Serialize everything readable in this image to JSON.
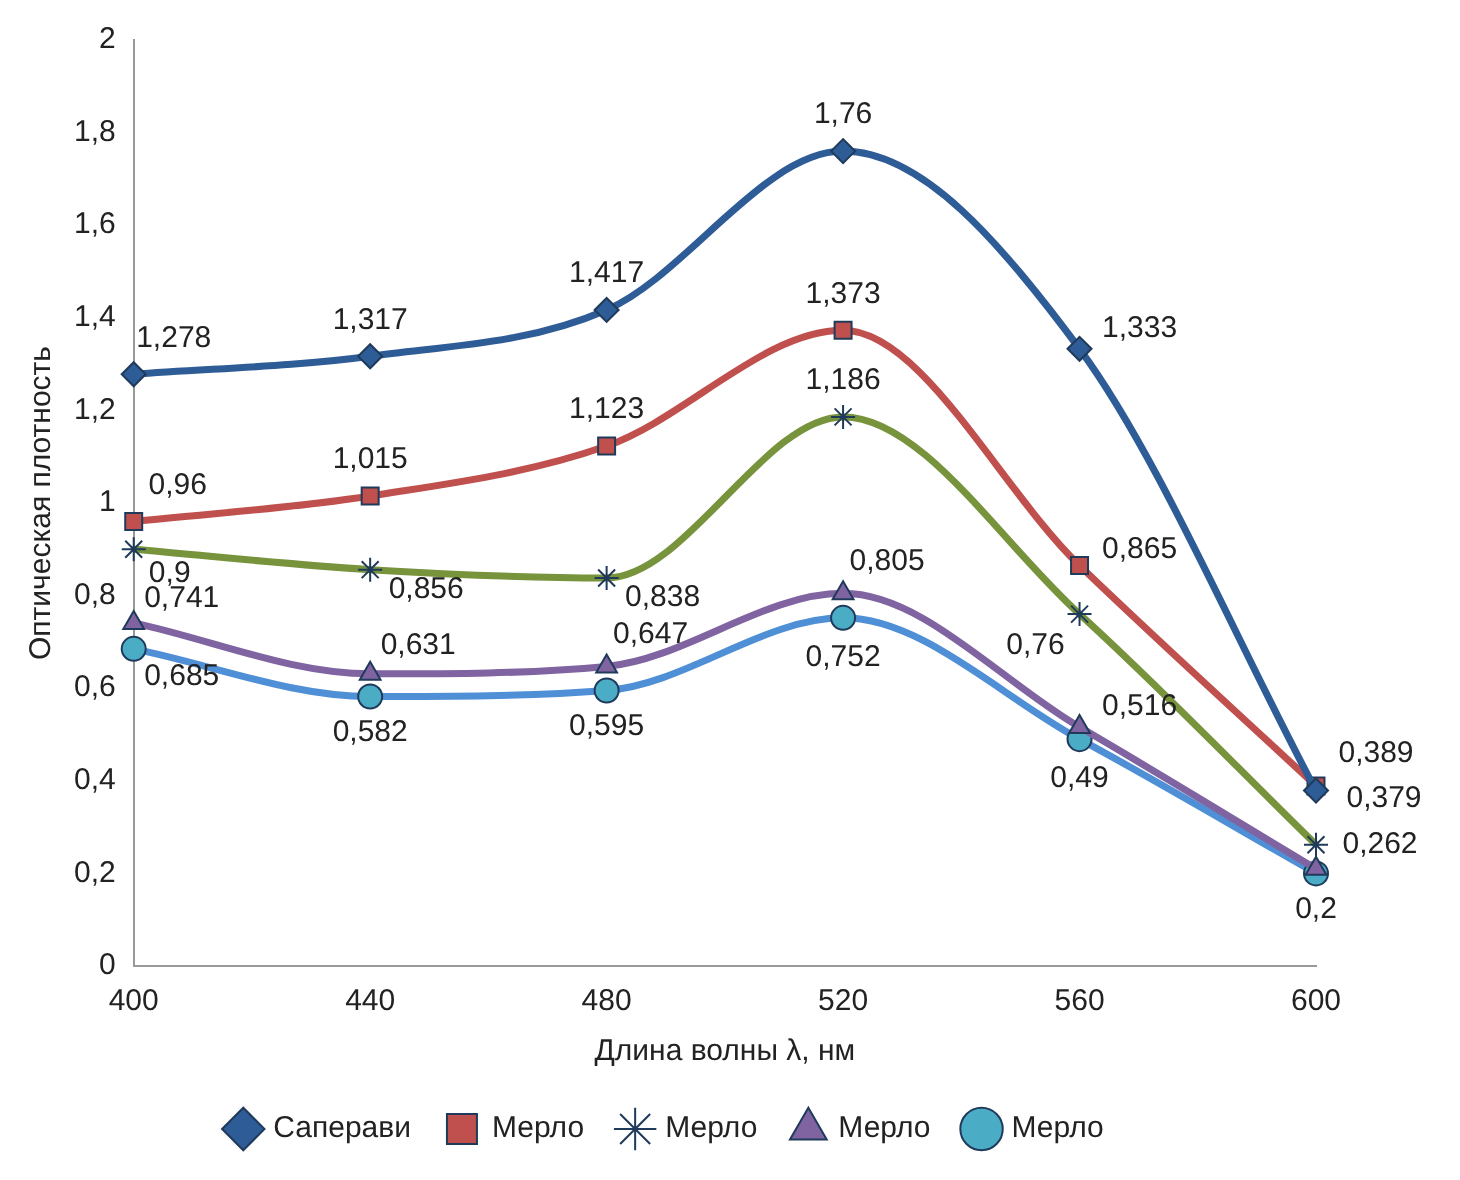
{
  "chart_data": {
    "type": "line",
    "xlabel": "Длина волны λ, нм",
    "ylabel": "Оптическая плотность",
    "categories": [
      "400",
      "440",
      "480",
      "520",
      "560",
      "600"
    ],
    "series": [
      {
        "name": "Саперави",
        "color": "#2e5c96",
        "marker": "diamond",
        "values": [
          1.278,
          1.317,
          1.417,
          1.76,
          1.333,
          0.379
        ],
        "value_labels": [
          "1,278",
          "1,317",
          "1,417",
          "1,76",
          "1,333",
          "0,379"
        ]
      },
      {
        "name": "Мерло",
        "color": "#c0504d",
        "marker": "square",
        "values": [
          0.96,
          1.015,
          1.123,
          1.373,
          0.865,
          0.389
        ],
        "value_labels": [
          "0,96",
          "1,015",
          "1,123",
          "1,373",
          "0,865",
          "0,389"
        ]
      },
      {
        "name": "Мерло",
        "color": "#77933c",
        "marker": "cross",
        "values": [
          0.9,
          0.856,
          0.838,
          1.186,
          0.76,
          0.262
        ],
        "value_labels": [
          "0,9",
          "0,856",
          "0,838",
          "1,186",
          "0,76",
          "0,262"
        ]
      },
      {
        "name": "Мерло",
        "color": "#8064a2",
        "marker": "triangle",
        "values": [
          0.741,
          0.631,
          0.647,
          0.805,
          0.516,
          0.21
        ],
        "value_labels": [
          "0,741",
          "0,631",
          "0,647",
          "0,805",
          "0,516",
          null
        ]
      },
      {
        "name": "Мерло",
        "color": "#4f8fd6",
        "marker": "circle",
        "values": [
          0.685,
          0.582,
          0.595,
          0.752,
          0.49,
          0.2
        ],
        "value_labels": [
          "0,685",
          "0,582",
          "0,595",
          "0,752",
          "0,49",
          "0,2"
        ]
      }
    ],
    "ylim": [
      0,
      2
    ],
    "yticks": [
      0,
      {
        "value": 0.2,
        "label": "0,2"
      },
      {
        "value": 0.4,
        "label": "0,4"
      },
      {
        "value": 0.6,
        "label": "0,6"
      },
      {
        "value": 0.8,
        "label": "0,8"
      },
      1,
      {
        "value": 1.2,
        "label": "1,2"
      },
      {
        "value": 1.4,
        "label": "1,4"
      },
      {
        "value": 1.6,
        "label": "1,6"
      },
      {
        "value": 1.8,
        "label": "1,8"
      },
      2
    ],
    "grid": false,
    "legend": "bottom"
  }
}
